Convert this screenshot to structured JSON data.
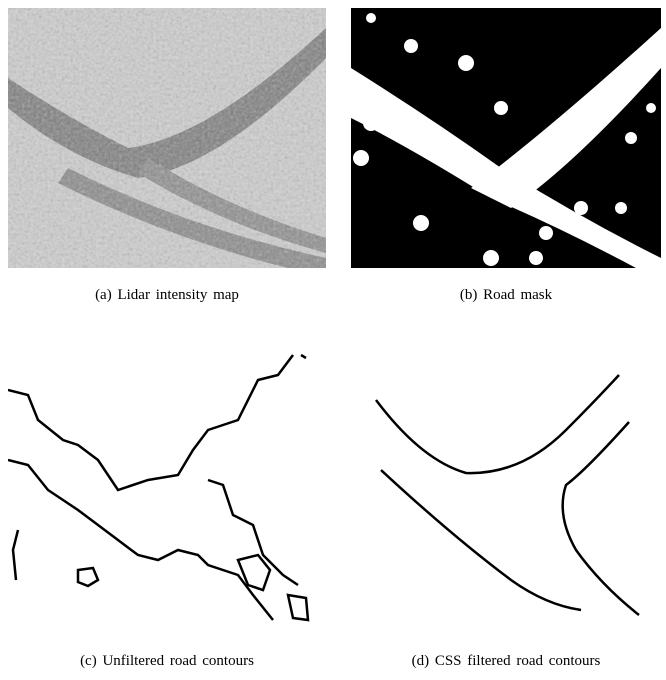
{
  "figure": {
    "panels": [
      {
        "caption": "(a) Lidar intensity map"
      },
      {
        "caption": "(b) Road mask"
      },
      {
        "caption": "(c) Unfiltered road contours"
      },
      {
        "caption": "(d) CSS filtered road contours"
      }
    ]
  }
}
